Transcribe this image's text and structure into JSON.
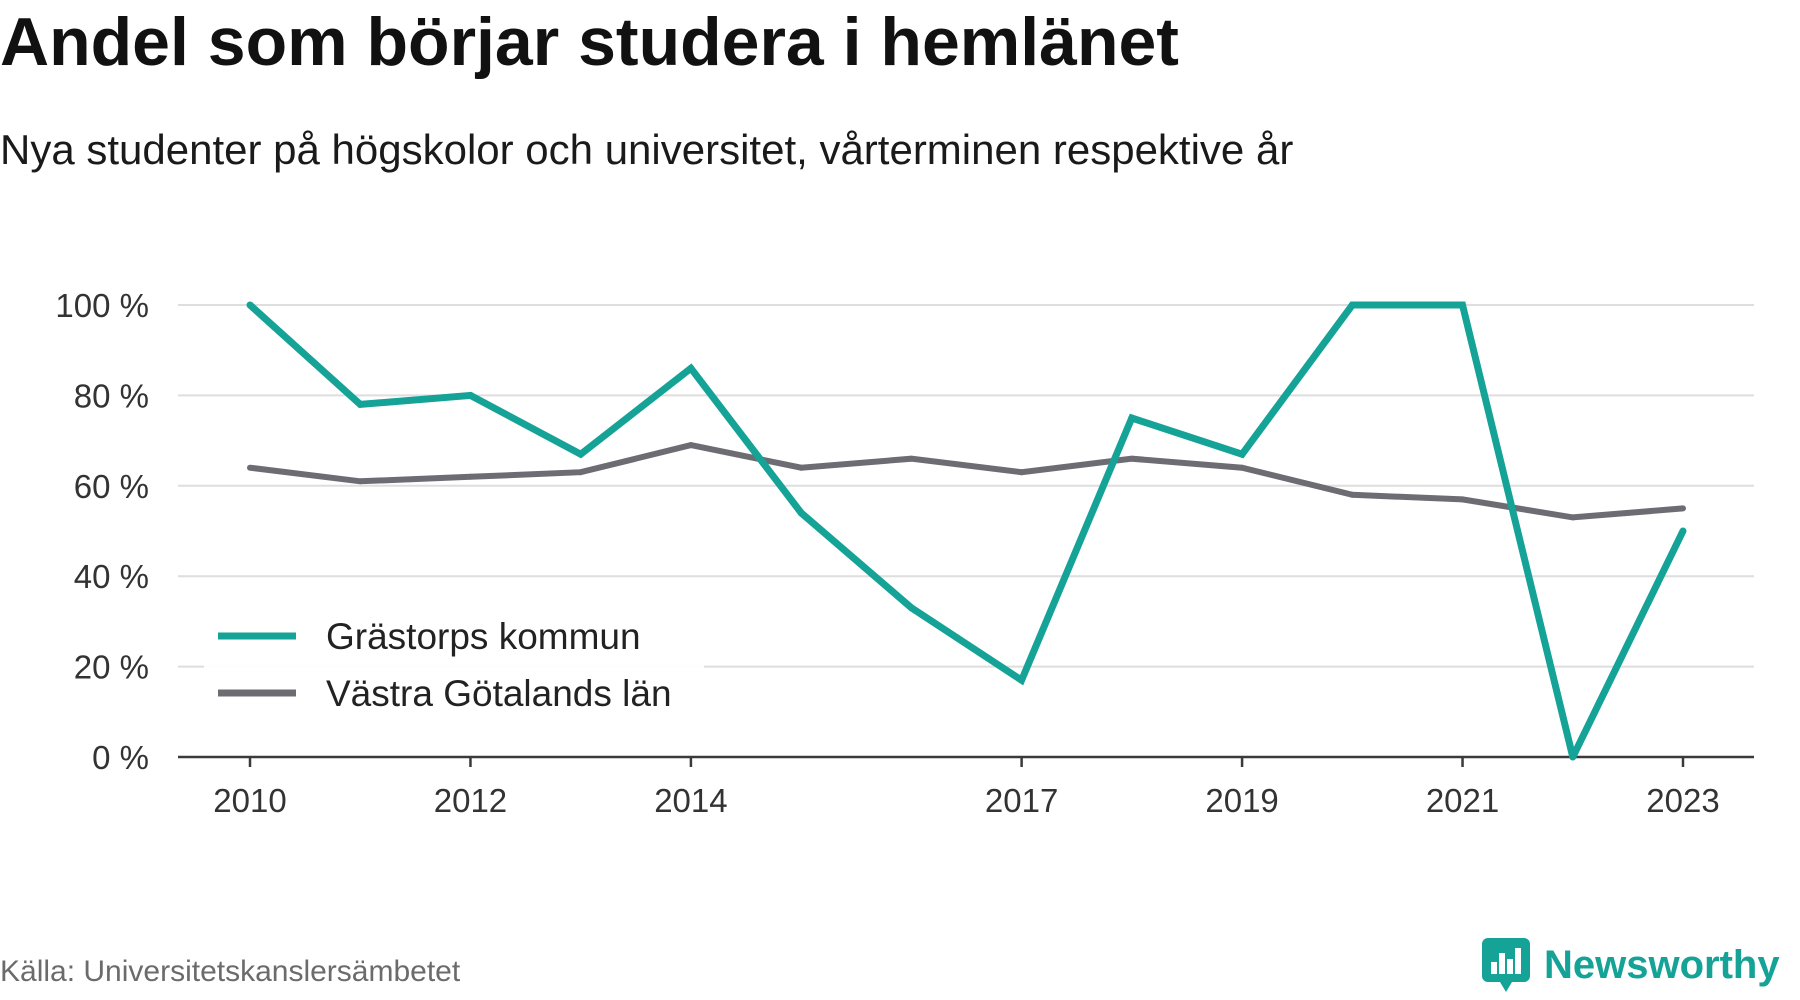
{
  "source": "Källa: Universitetskanslersämbetet",
  "brand": {
    "name": "Newsworthy",
    "icon": "newsworthy-logo-icon",
    "color": "#14a396"
  },
  "chart_data": {
    "type": "line",
    "title": "Andel som börjar studera i hemlänet",
    "subtitle": "Nya studenter på högskolor och universitet, vårterminen respektive år",
    "x": [
      2010,
      2011,
      2012,
      2013,
      2014,
      2015,
      2016,
      2017,
      2018,
      2019,
      2020,
      2021,
      2022,
      2023
    ],
    "xlim": [
      2010,
      2023
    ],
    "x_tick_values": [
      2010,
      2012,
      2014,
      2017,
      2019,
      2021,
      2023
    ],
    "x_tick_labels": [
      "2010",
      "2012",
      "2014",
      "2017",
      "2019",
      "2021",
      "2023"
    ],
    "ylim": [
      0,
      100
    ],
    "y_tick_values": [
      0,
      20,
      40,
      60,
      80,
      100
    ],
    "y_tick_labels": [
      "0 %",
      "20 %",
      "40 %",
      "60 %",
      "80 %",
      "100 %"
    ],
    "grid": true,
    "legend_position": "bottom-left",
    "series": [
      {
        "name": "Grästorps kommun",
        "color": "#14a396",
        "values": [
          100,
          78,
          80,
          67,
          86,
          54,
          33,
          17,
          75,
          67,
          100,
          100,
          0,
          50
        ]
      },
      {
        "name": "Västra Götalands län",
        "color": "#6d6c73",
        "values": [
          64,
          61,
          62,
          63,
          69,
          64,
          66,
          63,
          66,
          64,
          58,
          57,
          53,
          55
        ]
      }
    ]
  }
}
